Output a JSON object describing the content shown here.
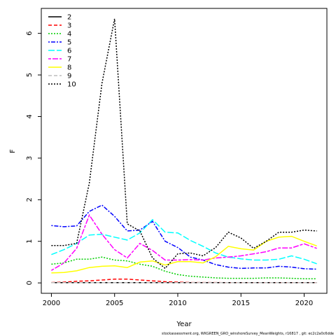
{
  "chart_data": {
    "type": "line",
    "xlabel": "Year",
    "ylabel": "F",
    "xlim": [
      1999.2,
      2021.8
    ],
    "ylim": [
      -0.25,
      6.6
    ],
    "x_ticks": [
      2000,
      2005,
      2010,
      2015,
      2020
    ],
    "y_ticks": [
      0,
      1,
      2,
      3,
      4,
      5,
      6
    ],
    "grid": false,
    "legend_position": "top-left",
    "footer": "stockassessment.org,  WKGREEN_GRO_winshoreSurvey_MeanWeights,  r16817 ,  git:  ec2c2a0c6dde",
    "x": [
      2000,
      2001,
      2002,
      2003,
      2004,
      2005,
      2006,
      2007,
      2008,
      2009,
      2010,
      2011,
      2012,
      2013,
      2014,
      2015,
      2016,
      2017,
      2018,
      2019,
      2020,
      2021
    ],
    "series": [
      {
        "name": "2",
        "color": "#000000",
        "dash": "solid",
        "values": [
          0.005,
          0.005,
          0.005,
          0.005,
          0.005,
          0.005,
          0.005,
          0.005,
          0.005,
          0.005,
          0.005,
          0.005,
          0.005,
          0.005,
          0.005,
          0.005,
          0.005,
          0.005,
          0.005,
          0.005,
          0.005,
          0.005
        ]
      },
      {
        "name": "3",
        "color": "#ff0000",
        "dash": "dashed",
        "values": [
          0.01,
          0.02,
          0.04,
          0.05,
          0.07,
          0.09,
          0.09,
          0.07,
          0.05,
          0.03,
          0.02,
          0.01,
          0.01,
          0.01,
          0.005,
          0.005,
          0.005,
          0.005,
          0.005,
          0.005,
          0.005,
          0.005
        ]
      },
      {
        "name": "4",
        "color": "#00cd00",
        "dash": "dotted",
        "values": [
          0.45,
          0.48,
          0.57,
          0.57,
          0.62,
          0.55,
          0.53,
          0.45,
          0.4,
          0.28,
          0.2,
          0.16,
          0.14,
          0.12,
          0.11,
          0.11,
          0.11,
          0.12,
          0.12,
          0.11,
          0.1,
          0.1
        ]
      },
      {
        "name": "5",
        "color": "#0000ff",
        "dash": "dotdash",
        "values": [
          1.38,
          1.35,
          1.37,
          1.72,
          1.87,
          1.6,
          1.25,
          1.27,
          1.48,
          1.0,
          0.85,
          0.62,
          0.55,
          0.44,
          0.38,
          0.35,
          0.36,
          0.36,
          0.4,
          0.38,
          0.34,
          0.33
        ]
      },
      {
        "name": "6",
        "color": "#00ffff",
        "dash": "longdash",
        "values": [
          0.68,
          0.8,
          0.95,
          1.15,
          1.17,
          1.1,
          1.03,
          1.2,
          1.52,
          1.22,
          1.2,
          1.02,
          0.88,
          0.72,
          0.62,
          0.58,
          0.55,
          0.55,
          0.57,
          0.65,
          0.57,
          0.46
        ]
      },
      {
        "name": "7",
        "color": "#ff00ff",
        "dash": "twodash",
        "values": [
          0.3,
          0.48,
          0.83,
          1.63,
          1.17,
          0.8,
          0.6,
          0.95,
          0.78,
          0.55,
          0.55,
          0.56,
          0.55,
          0.6,
          0.62,
          0.65,
          0.7,
          0.75,
          0.84,
          0.84,
          0.94,
          0.83
        ]
      },
      {
        "name": "8",
        "color": "#ffff00",
        "dash": "solid",
        "values": [
          0.24,
          0.25,
          0.29,
          0.37,
          0.4,
          0.41,
          0.37,
          0.5,
          0.53,
          0.43,
          0.51,
          0.51,
          0.48,
          0.63,
          0.88,
          0.82,
          0.79,
          1.0,
          1.1,
          1.12,
          1.0,
          0.89
        ]
      },
      {
        "name": "9",
        "color": "#bebebe",
        "dash": "dashed",
        "values": [
          0.005,
          0.005,
          0.005,
          0.005,
          0.005,
          0.005,
          0.005,
          0.005,
          0.005,
          0.005,
          0.005,
          0.005,
          0.005,
          0.005,
          0.005,
          0.005,
          0.005,
          0.005,
          0.005,
          0.005,
          0.005,
          0.005
        ]
      },
      {
        "name": "10",
        "color": "#000000",
        "dash": "dotted",
        "values": [
          0.9,
          0.9,
          0.95,
          2.4,
          4.8,
          6.35,
          1.42,
          1.25,
          0.6,
          0.35,
          0.7,
          0.72,
          0.65,
          0.85,
          1.22,
          1.08,
          0.83,
          1.0,
          1.22,
          1.22,
          1.27,
          1.25
        ]
      }
    ]
  }
}
